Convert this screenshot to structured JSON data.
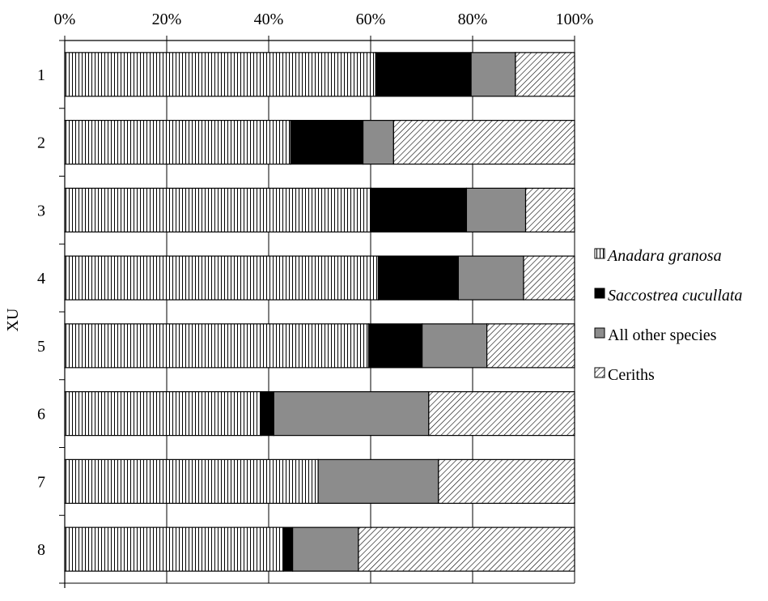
{
  "chart_data": {
    "type": "bar",
    "orientation": "horizontal",
    "stacked": "percent",
    "title": "",
    "xlabel": "",
    "ylabel": "XU",
    "xlim": [
      0,
      100
    ],
    "x_tick_labels": [
      "0%",
      "20%",
      "40%",
      "60%",
      "80%",
      "100%"
    ],
    "x_tick_values": [
      0,
      20,
      40,
      60,
      80,
      100
    ],
    "x_axis_position": "top",
    "grid": "vertical",
    "legend_position": "right",
    "categories": [
      "1",
      "2",
      "3",
      "4",
      "5",
      "6",
      "7",
      "8"
    ],
    "series": [
      {
        "name": "Anadara granosa",
        "italic": true,
        "pattern": "vertical-lines",
        "values": [
          61,
          44.3,
          60.1,
          61.5,
          59.6,
          38.5,
          49.7,
          42.9
        ]
      },
      {
        "name": "Saccostrea cucullata",
        "italic": true,
        "pattern": "solid-black",
        "values": [
          18.7,
          14.2,
          18.7,
          15.7,
          10.5,
          2.5,
          0,
          1.8
        ]
      },
      {
        "name": "All other species",
        "italic": false,
        "pattern": "solid-gray",
        "values": [
          8.7,
          6.0,
          11.6,
          12.8,
          12.7,
          30.4,
          23.6,
          12.9
        ]
      },
      {
        "name": "Ceriths",
        "italic": false,
        "pattern": "diagonal-lines",
        "values": [
          11.6,
          35.5,
          9.6,
          10.0,
          17.2,
          28.6,
          26.7,
          42.4
        ]
      }
    ],
    "colors": {
      "black": "#000000",
      "gray": "#8c8c8c",
      "white": "#ffffff"
    }
  }
}
